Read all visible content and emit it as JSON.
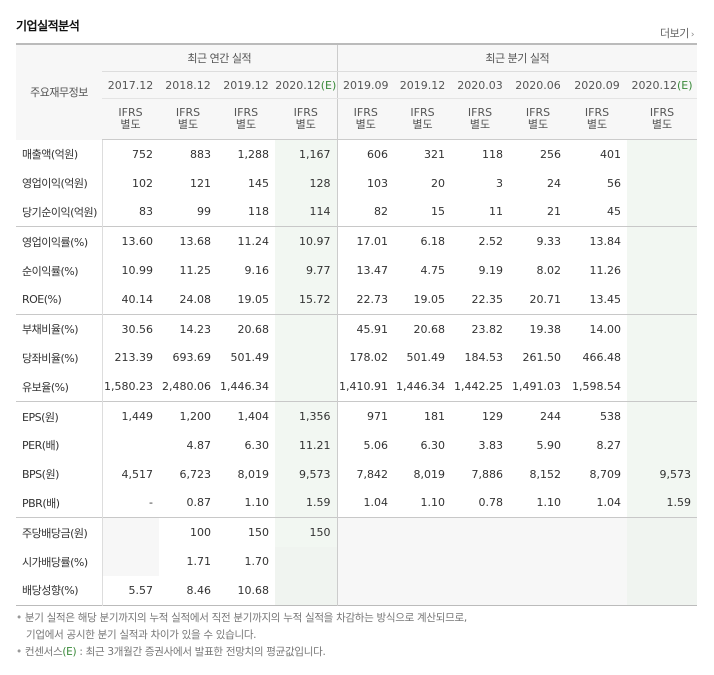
{
  "title": "기업실적분석",
  "more_label": "더보기",
  "header": {
    "row_label": "주요재무정보",
    "group_annual": "최근 연간 실적",
    "group_quarter": "최근 분기 실적",
    "annual_periods": [
      "2017.12",
      "2018.12",
      "2019.12",
      "2020.12"
    ],
    "quarter_periods": [
      "2019.09",
      "2019.12",
      "2020.03",
      "2020.06",
      "2020.09",
      "2020.12"
    ],
    "estimate_suffix": "(E)",
    "ifrs_line1": "IFRS",
    "ifrs_line2": "별도"
  },
  "rows": [
    {
      "label": "매출액(억원)",
      "a": [
        "752",
        "883",
        "1,288",
        "1,167"
      ],
      "q": [
        "606",
        "321",
        "118",
        "256",
        "401",
        ""
      ]
    },
    {
      "label": "영업이익(억원)",
      "a": [
        "102",
        "121",
        "145",
        "128"
      ],
      "q": [
        "103",
        "20",
        "3",
        "24",
        "56",
        ""
      ]
    },
    {
      "label": "당기순이익(억원)",
      "a": [
        "83",
        "99",
        "118",
        "114"
      ],
      "q": [
        "82",
        "15",
        "11",
        "21",
        "45",
        ""
      ]
    },
    {
      "label": "영업이익률(%)",
      "a": [
        "13.60",
        "13.68",
        "11.24",
        "10.97"
      ],
      "q": [
        "17.01",
        "6.18",
        "2.52",
        "9.33",
        "13.84",
        ""
      ]
    },
    {
      "label": "순이익률(%)",
      "a": [
        "10.99",
        "11.25",
        "9.16",
        "9.77"
      ],
      "q": [
        "13.47",
        "4.75",
        "9.19",
        "8.02",
        "11.26",
        ""
      ]
    },
    {
      "label": "ROE(%)",
      "a": [
        "40.14",
        "24.08",
        "19.05",
        "15.72"
      ],
      "q": [
        "22.73",
        "19.05",
        "22.35",
        "20.71",
        "13.45",
        ""
      ]
    },
    {
      "label": "부채비율(%)",
      "a": [
        "30.56",
        "14.23",
        "20.68",
        ""
      ],
      "q": [
        "45.91",
        "20.68",
        "23.82",
        "19.38",
        "14.00",
        ""
      ]
    },
    {
      "label": "당좌비율(%)",
      "a": [
        "213.39",
        "693.69",
        "501.49",
        ""
      ],
      "q": [
        "178.02",
        "501.49",
        "184.53",
        "261.50",
        "466.48",
        ""
      ]
    },
    {
      "label": "유보율(%)",
      "a": [
        "1,580.23",
        "2,480.06",
        "1,446.34",
        ""
      ],
      "q": [
        "1,410.91",
        "1,446.34",
        "1,442.25",
        "1,491.03",
        "1,598.54",
        ""
      ]
    },
    {
      "label": "EPS(원)",
      "a": [
        "1,449",
        "1,200",
        "1,404",
        "1,356"
      ],
      "q": [
        "971",
        "181",
        "129",
        "244",
        "538",
        ""
      ]
    },
    {
      "label": "PER(배)",
      "a": [
        "",
        "4.87",
        "6.30",
        "11.21"
      ],
      "q": [
        "5.06",
        "6.30",
        "3.83",
        "5.90",
        "8.27",
        ""
      ]
    },
    {
      "label": "BPS(원)",
      "a": [
        "4,517",
        "6,723",
        "8,019",
        "9,573"
      ],
      "q": [
        "7,842",
        "8,019",
        "7,886",
        "8,152",
        "8,709",
        "9,573"
      ]
    },
    {
      "label": "PBR(배)",
      "a": [
        "-",
        "0.87",
        "1.10",
        "1.59"
      ],
      "q": [
        "1.04",
        "1.10",
        "0.78",
        "1.10",
        "1.04",
        "1.59"
      ]
    },
    {
      "label": "주당배당금(원)",
      "a": [
        "",
        "100",
        "150",
        "150"
      ],
      "q": [
        "",
        "",
        "",
        "",
        "",
        ""
      ]
    },
    {
      "label": "시가배당률(%)",
      "a": [
        "",
        "1.71",
        "1.70",
        ""
      ],
      "q": [
        "",
        "",
        "",
        "",
        "",
        ""
      ]
    },
    {
      "label": "배당성향(%)",
      "a": [
        "5.57",
        "8.46",
        "10.68",
        ""
      ],
      "q": [
        "",
        "",
        "",
        "",
        "",
        ""
      ]
    }
  ],
  "notes": {
    "note1_line1": "분기 실적은 해당 분기까지의 누적 실적에서 직전 분기까지의 누적 실적을 차감하는 방식으로 계산되므로,",
    "note1_line2": "기업에서 공시한 분기 실적과 차이가 있을 수 있습니다.",
    "note2_prefix": "컨센서스",
    "note2_e": "(E)",
    "note2_text": ": 최근 3개월간 증권사에서 발표한 전망치의 평균값입니다."
  }
}
